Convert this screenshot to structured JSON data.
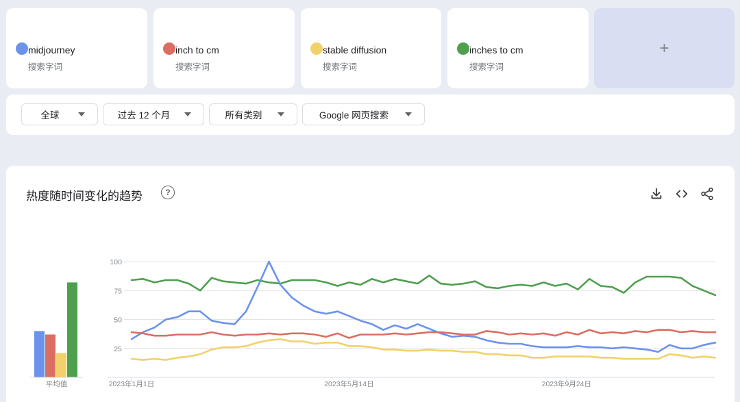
{
  "terms": [
    {
      "name": "midjourney",
      "sub": "搜索字词",
      "color": "#6b93ec"
    },
    {
      "name": "inch to cm",
      "sub": "搜索字词",
      "color": "#db6e63"
    },
    {
      "name": "stable diffusion",
      "sub": "搜索字词",
      "color": "#f1d169"
    },
    {
      "name": "inches to cm",
      "sub": "搜索字词",
      "color": "#4ea04e"
    }
  ],
  "add_label": "+",
  "filters": {
    "region": "全球",
    "time": "过去 12 个月",
    "category": "所有类别",
    "search_type": "Google 网页搜索"
  },
  "chart_card": {
    "title": "热度随时间变化的趋势",
    "help": "?"
  },
  "chart_data": {
    "type": "line",
    "ylim": [
      0,
      100
    ],
    "yticks": [
      25,
      50,
      75,
      100
    ],
    "x_tick_labels": [
      {
        "label": "2023年1月1日",
        "index": 0
      },
      {
        "label": "2023年5月14日",
        "index": 19
      },
      {
        "label": "2023年9月24日",
        "index": 38
      }
    ],
    "averages_label": "平均值",
    "averages": [
      {
        "name": "midjourney",
        "value": 40,
        "color": "#6b93ec"
      },
      {
        "name": "inch to cm",
        "value": 37,
        "color": "#db6e63"
      },
      {
        "name": "stable diffusion",
        "value": 21,
        "color": "#f1d169"
      },
      {
        "name": "inches to cm",
        "value": 82,
        "color": "#4ea04e"
      }
    ],
    "series": [
      {
        "name": "inches to cm",
        "color": "#4ea04e",
        "values": [
          84,
          85,
          82,
          84,
          84,
          81,
          75,
          86,
          83,
          82,
          81,
          84,
          82,
          81,
          84,
          84,
          84,
          82,
          79,
          82,
          80,
          85,
          82,
          85,
          83,
          81,
          88,
          81,
          80,
          81,
          83,
          78,
          77,
          79,
          80,
          79,
          82,
          79,
          81,
          76,
          85,
          79,
          78,
          73,
          82,
          87,
          87,
          87,
          86,
          79,
          75,
          71
        ]
      },
      {
        "name": "midjourney",
        "color": "#6b93ec",
        "values": [
          33,
          39,
          43,
          50,
          52,
          57,
          57,
          49,
          47,
          46,
          57,
          78,
          100,
          80,
          69,
          62,
          57,
          55,
          57,
          53,
          49,
          46,
          41,
          45,
          42,
          46,
          42,
          38,
          35,
          36,
          35,
          32,
          30,
          29,
          29,
          27,
          26,
          26,
          26,
          27,
          26,
          26,
          25,
          26,
          25,
          24,
          22,
          28,
          25,
          25,
          28,
          30
        ]
      },
      {
        "name": "inch to cm",
        "color": "#db6e63",
        "values": [
          39,
          38,
          36,
          36,
          37,
          37,
          37,
          39,
          37,
          36,
          37,
          37,
          38,
          37,
          38,
          38,
          37,
          35,
          38,
          34,
          37,
          37,
          37,
          38,
          37,
          38,
          39,
          39,
          38,
          37,
          37,
          40,
          39,
          37,
          38,
          37,
          38,
          36,
          39,
          37,
          41,
          38,
          39,
          38,
          40,
          39,
          41,
          41,
          39,
          40,
          39,
          39
        ]
      },
      {
        "name": "stable diffusion",
        "color": "#f1d169",
        "values": [
          16,
          15,
          16,
          15,
          17,
          18,
          20,
          24,
          26,
          26,
          27,
          30,
          32,
          33,
          31,
          31,
          29,
          30,
          30,
          27,
          27,
          26,
          24,
          24,
          23,
          23,
          24,
          23,
          23,
          22,
          22,
          20,
          20,
          19,
          19,
          17,
          17,
          18,
          18,
          18,
          18,
          17,
          17,
          16,
          16,
          16,
          16,
          20,
          19,
          17,
          18,
          17
        ]
      }
    ]
  }
}
